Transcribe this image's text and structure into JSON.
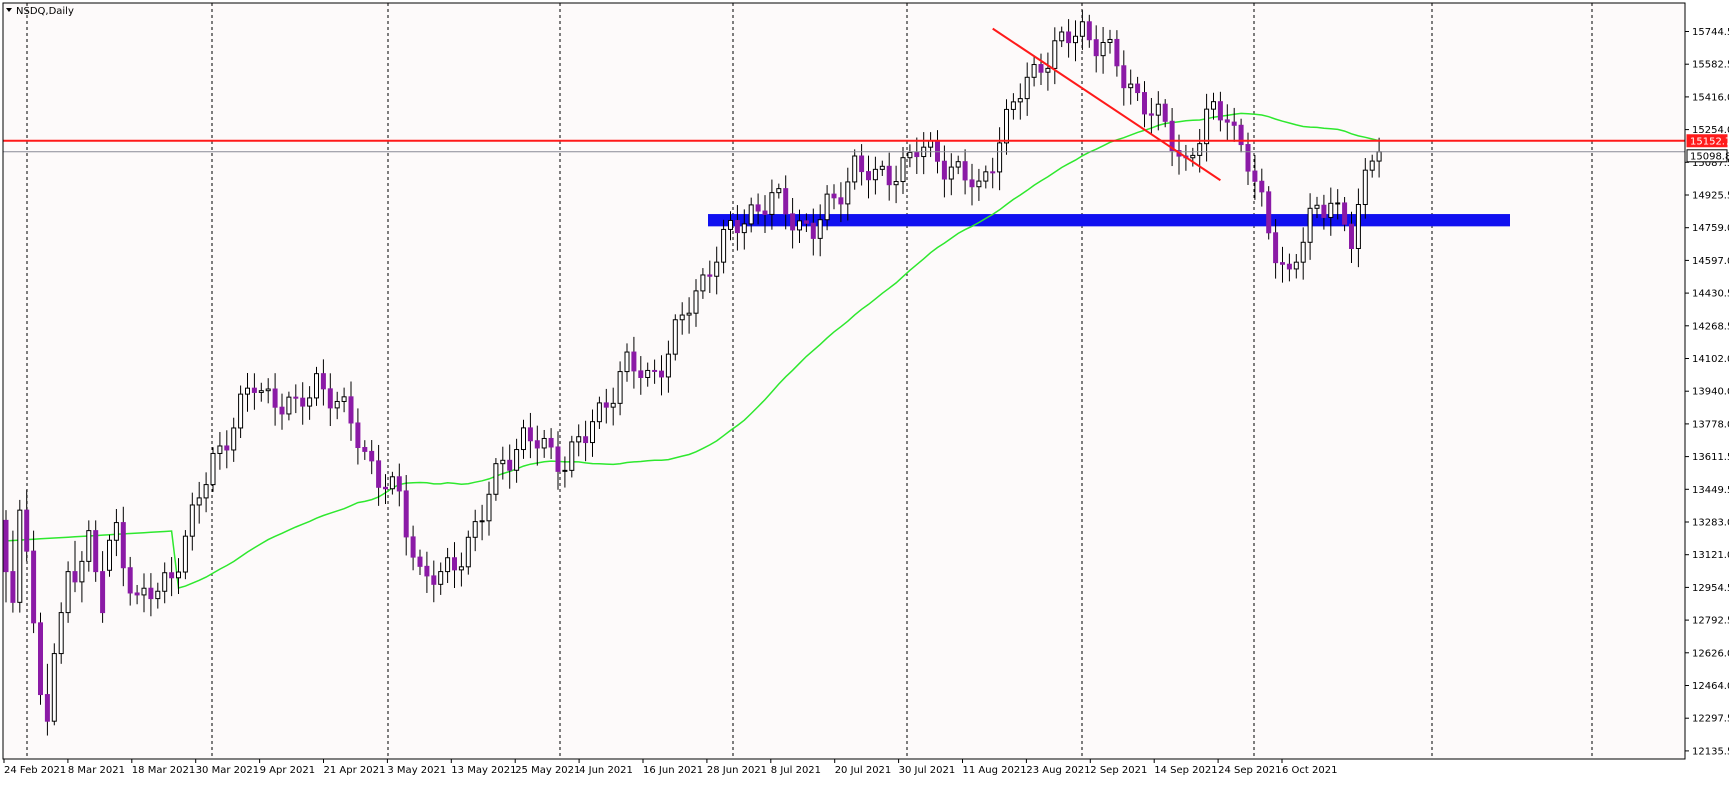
{
  "header": {
    "symbol_title": "NSDQ,Daily",
    "menu_arrow_icon": "triangle-down-icon"
  },
  "colors": {
    "background": "#fdfafa",
    "bull_candle_fill": "#ffffff",
    "bear_candle_fill": "#8b1aa6",
    "candle_outline": "#000000",
    "moving_average": "#2ee82e",
    "resistance_line": "#ff1a1a",
    "trend_line": "#ff1a1a",
    "support_zone": "#1010f0",
    "current_price_line": "#8a8a96",
    "resistance_label_bg": "#ff1a1a",
    "grid": "#000000"
  },
  "chart_data": {
    "type": "candlestick",
    "title": "NSDQ,Daily",
    "ylim": [
      12135.5,
      15825
    ],
    "y_ticks": [
      "15744.5",
      "15582.5",
      "15416.0",
      "15254.0",
      "15087.5",
      "14925.5",
      "14759.0",
      "14597.0",
      "14430.5",
      "14268.5",
      "14102.0",
      "13940.0",
      "13778.0",
      "13611.5",
      "13449.5",
      "13283.0",
      "13121.0",
      "12954.5",
      "12792.5",
      "12626.0",
      "12464.0",
      "12297.5",
      "12135.5"
    ],
    "x_labels": [
      "24 Feb 2021",
      "8 Mar 2021",
      "18 Mar 2021",
      "30 Mar 2021",
      "9 Apr 2021",
      "21 Apr 2021",
      "3 May 2021",
      "13 May 2021",
      "25 May 2021",
      "4 Jun 2021",
      "16 Jun 2021",
      "28 Jun 2021",
      "8 Jul 2021",
      "20 Jul 2021",
      "30 Jul 2021",
      "11 Aug 2021",
      "23 Aug 2021",
      "2 Sep 2021",
      "14 Sep 2021",
      "24 Sep 2021",
      "6 Oct 2021"
    ],
    "resistance_level": {
      "label": "15152.7",
      "value": 15152.7
    },
    "current_price": {
      "label": "15098.8",
      "value": 15098.8
    },
    "support_zone": {
      "low": 14735,
      "high": 14795
    },
    "trend_line": {
      "from": {
        "candle": 143,
        "value": 15700
      },
      "to": {
        "candle": 176,
        "value": 14960
      }
    },
    "ohlc_tail": [
      [
        13300,
        13350,
        12900,
        13050
      ],
      [
        13050,
        13250,
        12850,
        12900
      ],
      [
        12900,
        13400,
        12850,
        13350
      ],
      [
        13350,
        13450,
        13100,
        13150
      ],
      [
        13150,
        13250,
        12750,
        12800
      ],
      [
        12800,
        12850,
        12400,
        12450
      ],
      [
        12450,
        12600,
        12250,
        12320
      ],
      [
        12320,
        12700,
        12300,
        12650
      ],
      [
        12650,
        12900,
        12600,
        12850
      ],
      [
        12850,
        13100,
        12800,
        13050
      ],
      [
        13050,
        13200,
        12950,
        13000
      ],
      [
        13000,
        13150,
        12900,
        13100
      ],
      [
        13100,
        13300,
        13050,
        13250
      ],
      [
        13250,
        13300,
        13000,
        13050
      ],
      [
        13050,
        13150,
        12800,
        12850
      ]
    ],
    "ma_period_note": "",
    "ma_values_note": ""
  }
}
